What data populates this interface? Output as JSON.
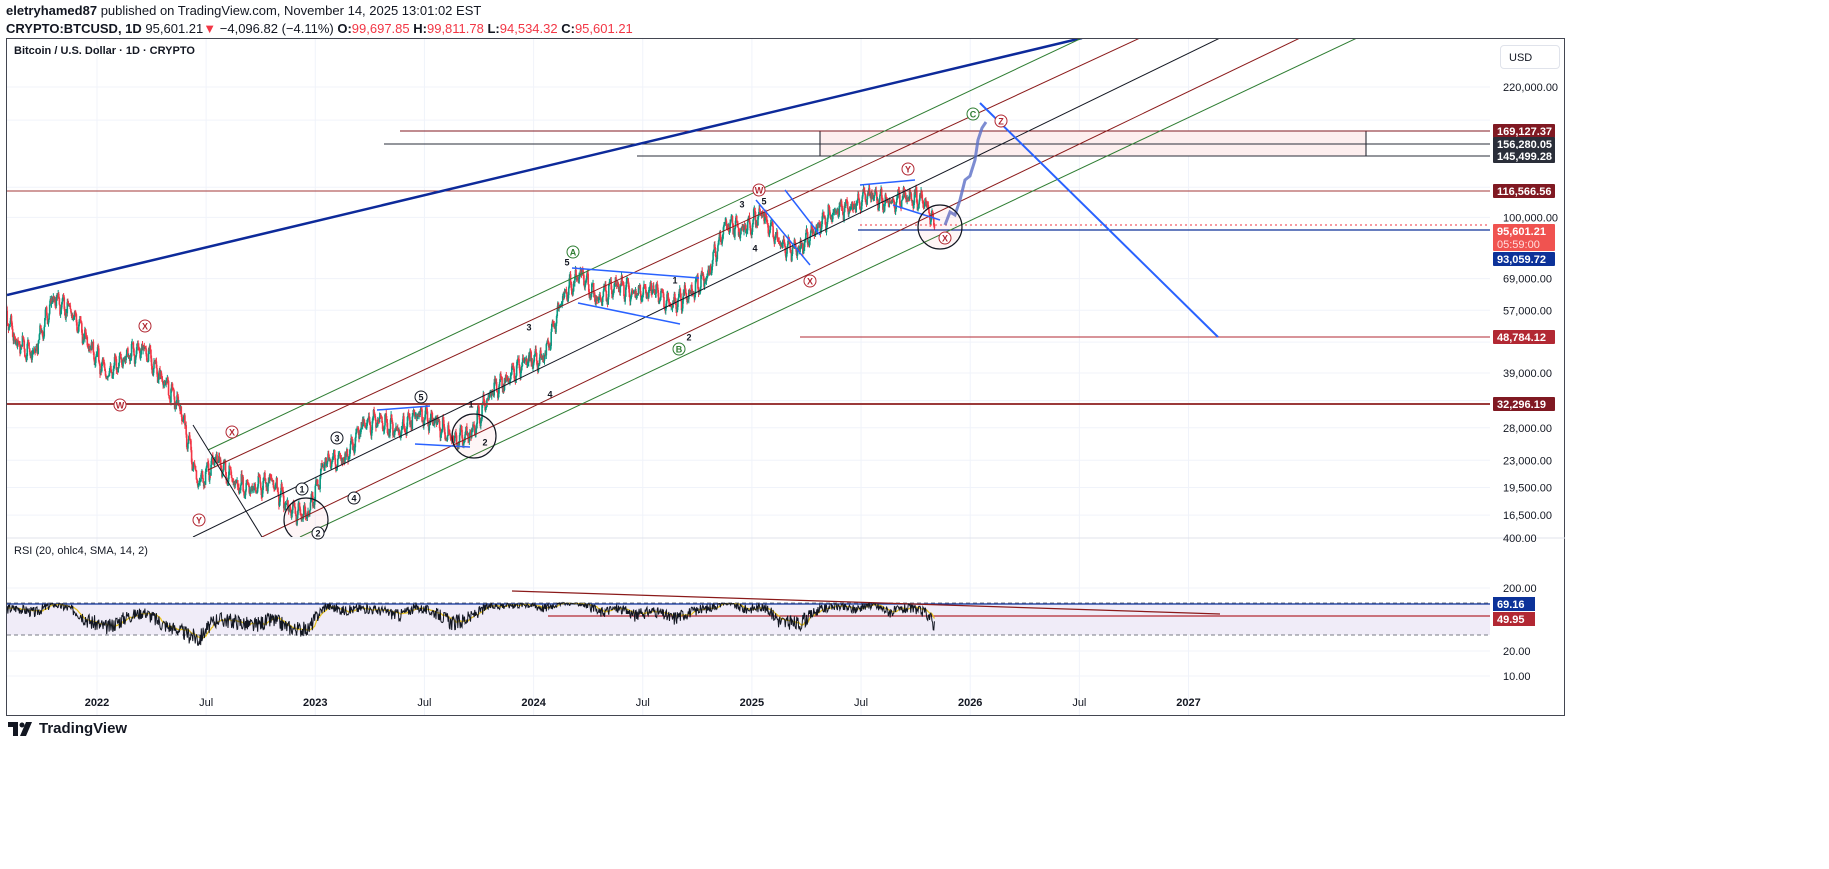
{
  "header": {
    "author": "eletryhamed87",
    "published": "published on TradingView.com, November 14, 2025 13:01:02 EST",
    "symbol": "CRYPTO:BTCUSD, 1D",
    "last": "95,601.21",
    "change": "−4,096.82 (−4.11%)",
    "o_label": "O:",
    "open": "99,697.85",
    "h_label": "H:",
    "high": "99,811.78",
    "l_label": "L:",
    "low": "94,534.32",
    "c_label": "C:",
    "close": "95,601.21"
  },
  "chart_title": "Bitcoin / U.S. Dollar · 1D · CRYPTO",
  "currency": "USD",
  "rsi_title": "RSI (20, ohlc4, SMA, 14, 2)",
  "footer_logo": "TradingView",
  "colors": {
    "up": "#089981",
    "down": "#f23645",
    "rsi": "#131722",
    "rsi_ma": "#e8c21a",
    "channel_green": "#2e7d32",
    "channel_red": "#8b1a1a",
    "trend_blue": "#0d2a9a",
    "proj_blue": "#2962ff"
  },
  "chart_data": {
    "type": "candlestick",
    "scale": "log",
    "x_ticks": [
      "2022",
      "Jul",
      "2023",
      "Jul",
      "2024",
      "Jul",
      "2025",
      "Jul",
      "2026",
      "Jul",
      "2027"
    ],
    "y_ticks": [
      "220,000.00",
      "100,000.00",
      "69,000.00",
      "57,000.00",
      "39,000.00",
      "28,000.00",
      "23,000.00",
      "19,500.00",
      "16,500.00"
    ],
    "ylim": [
      14500,
      300000
    ],
    "monthly_close": {
      "months": [
        "2021-08",
        "2021-09",
        "2021-10",
        "2021-11",
        "2021-12",
        "2022-01",
        "2022-02",
        "2022-03",
        "2022-04",
        "2022-05",
        "2022-06",
        "2022-07",
        "2022-08",
        "2022-09",
        "2022-10",
        "2022-11",
        "2022-12",
        "2023-01",
        "2023-02",
        "2023-03",
        "2023-04",
        "2023-05",
        "2023-06",
        "2023-07",
        "2023-08",
        "2023-09",
        "2023-10",
        "2023-11",
        "2023-12",
        "2024-01",
        "2024-02",
        "2024-03",
        "2024-04",
        "2024-05",
        "2024-06",
        "2024-07",
        "2024-08",
        "2024-09",
        "2024-10",
        "2024-11",
        "2024-12",
        "2025-01",
        "2025-02",
        "2025-03",
        "2025-04",
        "2025-05",
        "2025-06",
        "2025-07",
        "2025-08",
        "2025-09",
        "2025-10",
        "2025-11"
      ],
      "values": [
        47100,
        43800,
        61300,
        57000,
        46300,
        38500,
        43200,
        45500,
        37700,
        31800,
        19900,
        23300,
        20000,
        19400,
        20500,
        17200,
        16500,
        23100,
        23100,
        28500,
        29300,
        27200,
        30500,
        29200,
        26000,
        27000,
        34500,
        37700,
        42300,
        42600,
        61200,
        71300,
        60600,
        67500,
        62700,
        64600,
        59000,
        63300,
        70300,
        96400,
        93400,
        102400,
        84400,
        82500,
        94200,
        104600,
        107100,
        115700,
        108200,
        114000,
        109500,
        95601
      ]
    },
    "price_levels": [
      {
        "label": "169,127.37",
        "color": "#801922"
      },
      {
        "label": "156,280.05",
        "color": "#2a2e39"
      },
      {
        "label": "145,499.28",
        "color": "#2a2e39"
      },
      {
        "label": "116,566.56",
        "color": "#801922"
      },
      {
        "label": "95,601.21",
        "sub": "05:59:00",
        "color": "#f05350"
      },
      {
        "label": "93,059.72",
        "color": "#0c3299"
      },
      {
        "label": "48,784.12",
        "color": "#b22833"
      },
      {
        "label": "32,296.19",
        "color": "#801922"
      }
    ],
    "wave_labels": [
      "X",
      "W",
      "X",
      "Y",
      "1",
      "2",
      "3",
      "4",
      "5",
      "1",
      "2",
      "3",
      "4",
      "5",
      "A",
      "1",
      "2",
      "B",
      "3",
      "5",
      "4",
      "W",
      "X",
      "Y",
      "X",
      "C",
      "Z"
    ],
    "rsi": {
      "y_ticks": [
        "400.00",
        "200.00",
        "20.00",
        "10.00"
      ],
      "levels": [
        {
          "label": "69.16",
          "color": "#0c3299"
        },
        {
          "label": "49.95",
          "color": "#b22833"
        }
      ],
      "monthly_values": [
        62,
        55,
        70,
        60,
        45,
        38,
        50,
        56,
        42,
        35,
        28,
        48,
        45,
        40,
        47,
        38,
        36,
        66,
        58,
        62,
        58,
        52,
        63,
        55,
        42,
        50,
        66,
        68,
        70,
        62,
        75,
        72,
        55,
        62,
        52,
        58,
        48,
        56,
        62,
        74,
        60,
        64,
        44,
        42,
        58,
        66,
        60,
        68,
        56,
        62,
        55,
        40
      ]
    }
  }
}
